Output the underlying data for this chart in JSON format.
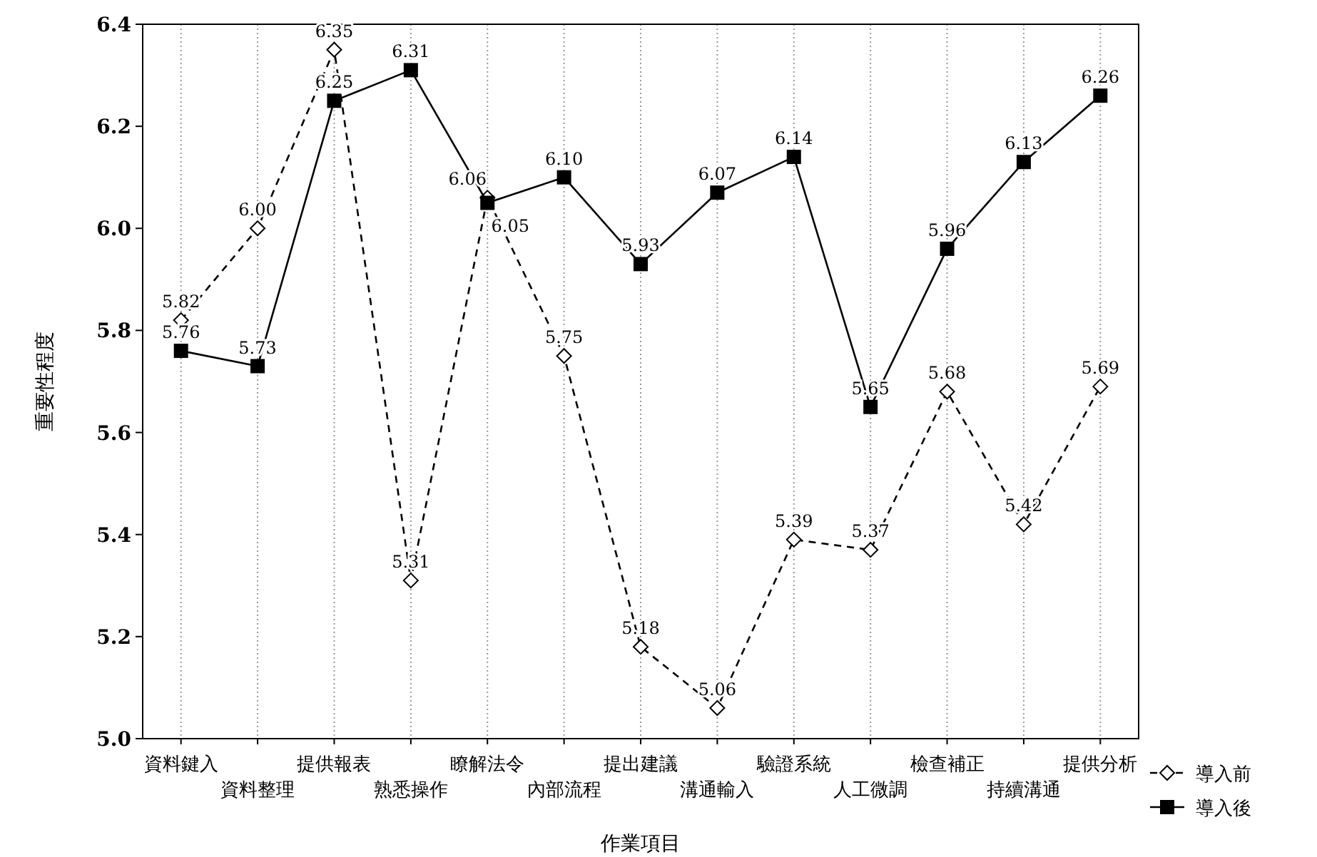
{
  "chart_data": {
    "type": "line",
    "xlabel": "作業項目",
    "ylabel": "重要性程度",
    "categories": [
      "資料鍵入",
      "資料整理",
      "提供報表",
      "熟悉操作",
      "瞭解法令",
      "內部流程",
      "提出建議",
      "溝通輸入",
      "驗證系統",
      "人工微調",
      "檢查補正",
      "持續溝通",
      "提供分析"
    ],
    "series": [
      {
        "name": "導入前",
        "color": "#000000",
        "marker": "diamond",
        "line_style": "dashed",
        "values": [
          5.82,
          6.0,
          6.35,
          5.31,
          6.06,
          5.75,
          5.18,
          5.06,
          5.39,
          5.37,
          5.68,
          5.42,
          5.69
        ],
        "value_labels": [
          "5.82",
          "6.00",
          "6.35",
          "5.31",
          "6.06",
          "5.75",
          "5.18",
          "5.06",
          "5.39",
          "5.37",
          "5.68",
          "5.42",
          "5.69"
        ]
      },
      {
        "name": "導入後",
        "color": "#000000",
        "marker": "square",
        "line_style": "solid",
        "values": [
          5.76,
          5.73,
          6.25,
          6.31,
          6.05,
          6.1,
          5.93,
          6.07,
          6.14,
          5.65,
          5.96,
          6.13,
          6.26
        ],
        "value_labels": [
          "5.76",
          "5.73",
          "6.25",
          "6.31",
          "6.05",
          "6.10",
          "5.93",
          "6.07",
          "6.14",
          "5.65",
          "5.96",
          "6.13",
          "6.26"
        ]
      }
    ],
    "ylim": [
      5.0,
      6.4
    ],
    "yticks": [
      {
        "value": 5.0,
        "label": "5.0"
      },
      {
        "value": 5.2,
        "label": "5.2"
      },
      {
        "value": 5.4,
        "label": "5.4"
      },
      {
        "value": 5.6,
        "label": "5.6"
      },
      {
        "value": 5.8,
        "label": "5.8"
      },
      {
        "value": 6.0,
        "label": "6.0"
      },
      {
        "value": 6.2,
        "label": "6.2"
      },
      {
        "value": 6.4,
        "label": "6.4"
      }
    ],
    "grid": "x",
    "legend": "bottom right"
  }
}
